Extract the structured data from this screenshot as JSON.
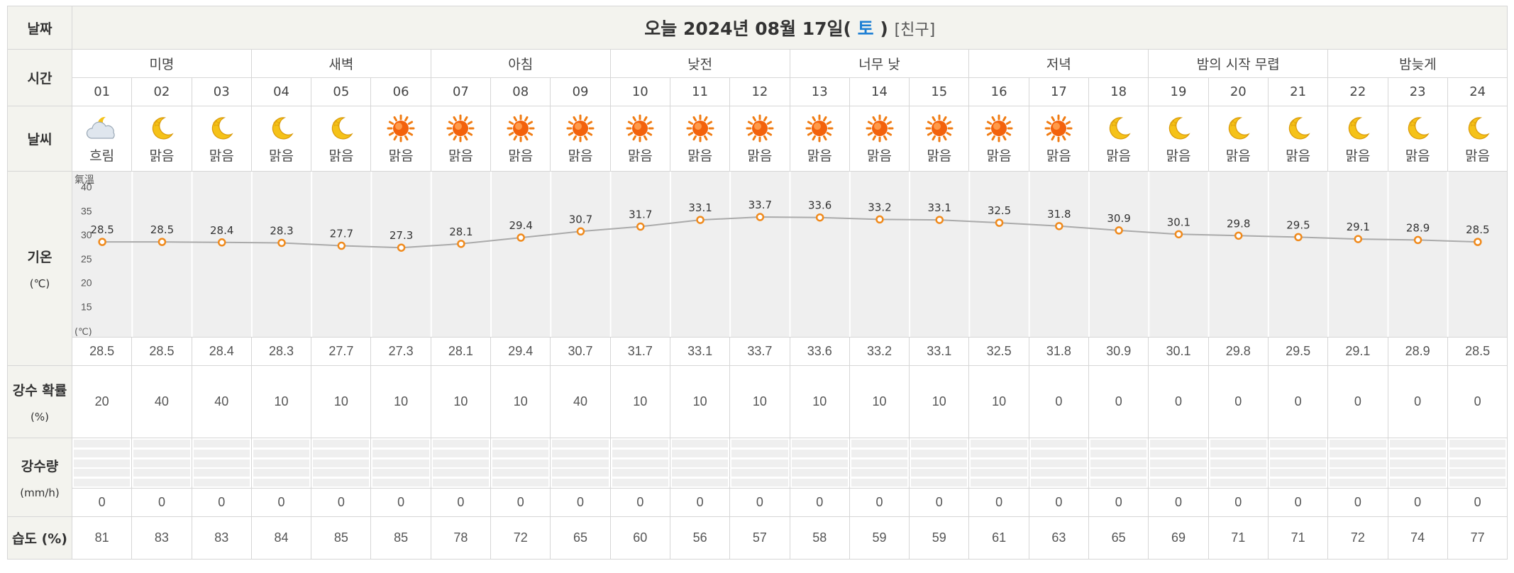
{
  "labels": {
    "date": "날짜",
    "time": "시간",
    "weather": "날씨",
    "temperature": "기온",
    "temperature_unit": "(℃)",
    "precip_prob": "강수 확률",
    "precip_prob_unit": "(%)",
    "precip_amount": "강수량",
    "precip_amount_unit": "(mm/h)",
    "humidity": "습도 (%)"
  },
  "header": {
    "date_prefix": "오늘 2024년 08월 17일(",
    "day_of_week": "토",
    "date_suffix": ")",
    "friend_link": "[친구]"
  },
  "periods": [
    "미명",
    "새벽",
    "아침",
    "낮전",
    "너무 낮",
    "저녁",
    "밤의 시작 무렵",
    "밤늦게"
  ],
  "hours": [
    "01",
    "02",
    "03",
    "04",
    "05",
    "06",
    "07",
    "08",
    "09",
    "10",
    "11",
    "12",
    "13",
    "14",
    "15",
    "16",
    "17",
    "18",
    "19",
    "20",
    "21",
    "22",
    "23",
    "24"
  ],
  "weather": [
    {
      "icon": "cloudy-moon-icon",
      "cond": "흐림"
    },
    {
      "icon": "moon-icon",
      "cond": "맑음"
    },
    {
      "icon": "moon-icon",
      "cond": "맑음"
    },
    {
      "icon": "moon-icon",
      "cond": "맑음"
    },
    {
      "icon": "moon-icon",
      "cond": "맑음"
    },
    {
      "icon": "sun-icon",
      "cond": "맑음"
    },
    {
      "icon": "sun-icon",
      "cond": "맑음"
    },
    {
      "icon": "sun-icon",
      "cond": "맑음"
    },
    {
      "icon": "sun-icon",
      "cond": "맑음"
    },
    {
      "icon": "sun-icon",
      "cond": "맑음"
    },
    {
      "icon": "sun-icon",
      "cond": "맑음"
    },
    {
      "icon": "sun-icon",
      "cond": "맑음"
    },
    {
      "icon": "sun-icon",
      "cond": "맑음"
    },
    {
      "icon": "sun-icon",
      "cond": "맑음"
    },
    {
      "icon": "sun-icon",
      "cond": "맑음"
    },
    {
      "icon": "sun-icon",
      "cond": "맑음"
    },
    {
      "icon": "sun-icon",
      "cond": "맑음"
    },
    {
      "icon": "moon-icon",
      "cond": "맑음"
    },
    {
      "icon": "moon-icon",
      "cond": "맑음"
    },
    {
      "icon": "moon-icon",
      "cond": "맑음"
    },
    {
      "icon": "moon-icon",
      "cond": "맑음"
    },
    {
      "icon": "moon-icon",
      "cond": "맑음"
    },
    {
      "icon": "moon-icon",
      "cond": "맑음"
    },
    {
      "icon": "moon-icon",
      "cond": "맑음"
    }
  ],
  "temperature_text": [
    "28.5",
    "28.5",
    "28.4",
    "28.3",
    "27.7",
    "27.3",
    "28.1",
    "29.4",
    "30.7",
    "31.7",
    "33.1",
    "33.7",
    "33.6",
    "33.2",
    "33.1",
    "32.5",
    "31.8",
    "30.9",
    "30.1",
    "29.8",
    "29.5",
    "29.1",
    "28.9",
    "28.5"
  ],
  "precip_prob": [
    "20",
    "40",
    "40",
    "10",
    "10",
    "10",
    "10",
    "10",
    "40",
    "10",
    "10",
    "10",
    "10",
    "10",
    "10",
    "10",
    "0",
    "0",
    "0",
    "0",
    "0",
    "0",
    "0",
    "0"
  ],
  "precip_amount": [
    "0",
    "0",
    "0",
    "0",
    "0",
    "0",
    "0",
    "0",
    "0",
    "0",
    "0",
    "0",
    "0",
    "0",
    "0",
    "0",
    "0",
    "0",
    "0",
    "0",
    "0",
    "0",
    "0",
    "0"
  ],
  "humidity": [
    "81",
    "83",
    "83",
    "84",
    "85",
    "85",
    "78",
    "72",
    "65",
    "60",
    "56",
    "57",
    "58",
    "59",
    "59",
    "61",
    "63",
    "65",
    "69",
    "71",
    "71",
    "72",
    "74",
    "77"
  ],
  "chart_data": {
    "type": "line",
    "title": "氣溫",
    "ylabel": "(℃)",
    "x": [
      "01",
      "02",
      "03",
      "04",
      "05",
      "06",
      "07",
      "08",
      "09",
      "10",
      "11",
      "12",
      "13",
      "14",
      "15",
      "16",
      "17",
      "18",
      "19",
      "20",
      "21",
      "22",
      "23",
      "24"
    ],
    "y": [
      28.5,
      28.5,
      28.4,
      28.3,
      27.7,
      27.3,
      28.1,
      29.4,
      30.7,
      31.7,
      33.1,
      33.7,
      33.6,
      33.2,
      33.1,
      32.5,
      31.8,
      30.9,
      30.1,
      29.8,
      29.5,
      29.1,
      28.9,
      28.5
    ],
    "yticks": [
      "40",
      "35",
      "30",
      "25",
      "20",
      "15"
    ],
    "ylim": [
      10,
      42
    ],
    "colors": {
      "line": "#aaaaaa",
      "marker": "#f08a1c",
      "grid": "#ffffff"
    }
  },
  "colors": {
    "label_bg": "#f3f3ee",
    "border": "#d6d6d6",
    "accent": "#1d7fd4"
  }
}
